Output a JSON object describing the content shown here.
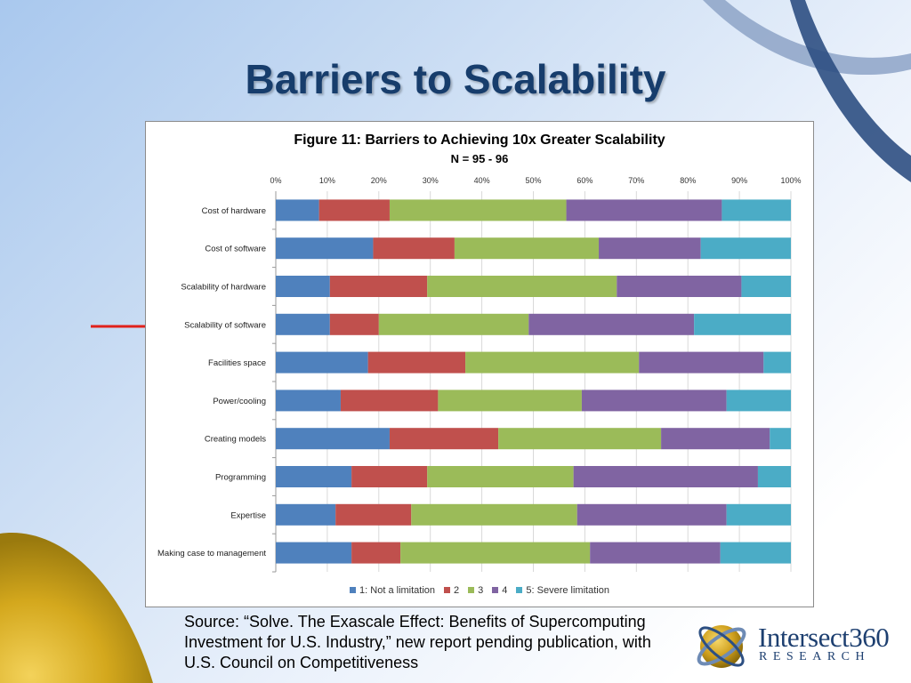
{
  "slide": {
    "title": "Barriers to Scalability",
    "source_text": "Source: “Solve. The Exascale Effect: Benefits of Supercomputing Investment for U.S. Industry,” new report pending publication, with U.S. Council on Competitiveness"
  },
  "logo": {
    "name": "Intersect360",
    "sub": "RESEARCH"
  },
  "colors": {
    "navy": "#173d6c",
    "arrow_red": "#e0211b"
  },
  "highlight": {
    "category": "Scalability of software",
    "icon": "red-arrow-icon"
  },
  "chart_data": {
    "type": "bar",
    "orientation": "horizontal",
    "stacked": "percent",
    "title": "Figure 11: Barriers to Achieving 10x Greater Scalability",
    "subtitle": "N = 95 - 96",
    "xlim": [
      0,
      100
    ],
    "ticks": [
      "0%",
      "10%",
      "20%",
      "30%",
      "40%",
      "50%",
      "60%",
      "70%",
      "80%",
      "90%",
      "100%"
    ],
    "grid": true,
    "legend_position": "bottom",
    "categories": [
      "Cost of hardware",
      "Cost of software",
      "Scalability of hardware",
      "Scalability of software",
      "Facilities space",
      "Power/cooling",
      "Creating models",
      "Programming",
      "Expertise",
      "Making case to management"
    ],
    "series": [
      {
        "name": "1: Not a limitation",
        "color": "#4f81bd",
        "values": [
          8.4,
          18.9,
          10.5,
          10.5,
          17.9,
          12.6,
          22.1,
          14.7,
          11.6,
          14.7
        ]
      },
      {
        "name": "2",
        "color": "#c0504d",
        "values": [
          13.7,
          15.8,
          18.9,
          9.5,
          18.9,
          18.9,
          21.1,
          14.7,
          14.7,
          9.5
        ]
      },
      {
        "name": "3",
        "color": "#9bbb59",
        "values": [
          34.3,
          28.0,
          36.8,
          29.1,
          33.7,
          27.9,
          31.6,
          28.4,
          32.2,
          36.8
        ]
      },
      {
        "name": "4",
        "color": "#8064a2",
        "values": [
          30.2,
          19.8,
          24.2,
          32.1,
          24.2,
          28.1,
          21.1,
          35.8,
          29.0,
          25.3
        ]
      },
      {
        "name": "5: Severe limitation",
        "color": "#4bacc6",
        "values": [
          13.4,
          17.5,
          9.6,
          18.8,
          5.3,
          12.5,
          4.1,
          6.4,
          12.5,
          13.7
        ]
      }
    ]
  }
}
